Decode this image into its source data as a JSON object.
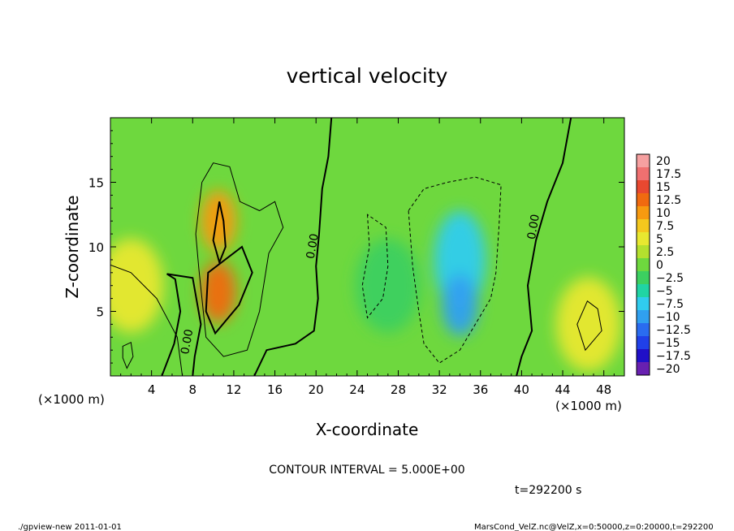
{
  "chart_data": {
    "type": "heatmap",
    "title": "vertical velocity",
    "xlabel": "X-coordinate",
    "ylabel": "Z-coordinate",
    "x_unit": "(×1000 m)",
    "xlim": [
      0,
      50
    ],
    "ylim": [
      0,
      20
    ],
    "x_ticks": [
      4,
      8,
      12,
      16,
      20,
      24,
      28,
      32,
      36,
      40,
      44,
      48
    ],
    "y_ticks": [
      5,
      10,
      15
    ],
    "colorbar": {
      "levels": [
        20,
        17.5,
        15,
        12.5,
        10,
        7.5,
        5,
        2.5,
        0,
        -2.5,
        -5,
        -7.5,
        -10,
        -12.5,
        -15,
        -17.5,
        -20
      ],
      "labels": [
        "20",
        "17.5",
        "15",
        "12.5",
        "10",
        "7.5",
        "5",
        "2.5",
        "0",
        "−2.5",
        "−5",
        "−7.5",
        "−10",
        "−12.5",
        "−15",
        "−17.5",
        "−20"
      ],
      "colors": [
        "#f6a0a0",
        "#f07070",
        "#e84830",
        "#f06a10",
        "#f79a10",
        "#f4c81e",
        "#e8e830",
        "#b4e02e",
        "#6ed83e",
        "#3cd060",
        "#20d4a4",
        "#30ccee",
        "#30a0f0",
        "#2a6cf0",
        "#2040e8",
        "#2010c8",
        "#6820b0"
      ]
    },
    "contour_label": "0.00",
    "contour_interval_text": "CONTOUR INTERVAL = 5.000E+00",
    "features": [
      {
        "x": 10.5,
        "z": 6.5,
        "value": 12.5
      },
      {
        "x": 10.5,
        "z": 12.0,
        "value": 10
      },
      {
        "x": 2.0,
        "z": 7.0,
        "value": 5
      },
      {
        "x": 34.0,
        "z": 9.0,
        "value": -7.5
      },
      {
        "x": 34.0,
        "z": 5.5,
        "value": -10
      },
      {
        "x": 27.0,
        "z": 7.0,
        "value": -2.5
      },
      {
        "x": 46.5,
        "z": 4.0,
        "value": 5
      }
    ]
  },
  "time_label": "t=292200 s",
  "footer_left": "./gpview-new  2011-01-01",
  "footer_right": "MarsCond_VelZ.nc@VelZ,x=0:50000,z=0:20000,t=292200"
}
